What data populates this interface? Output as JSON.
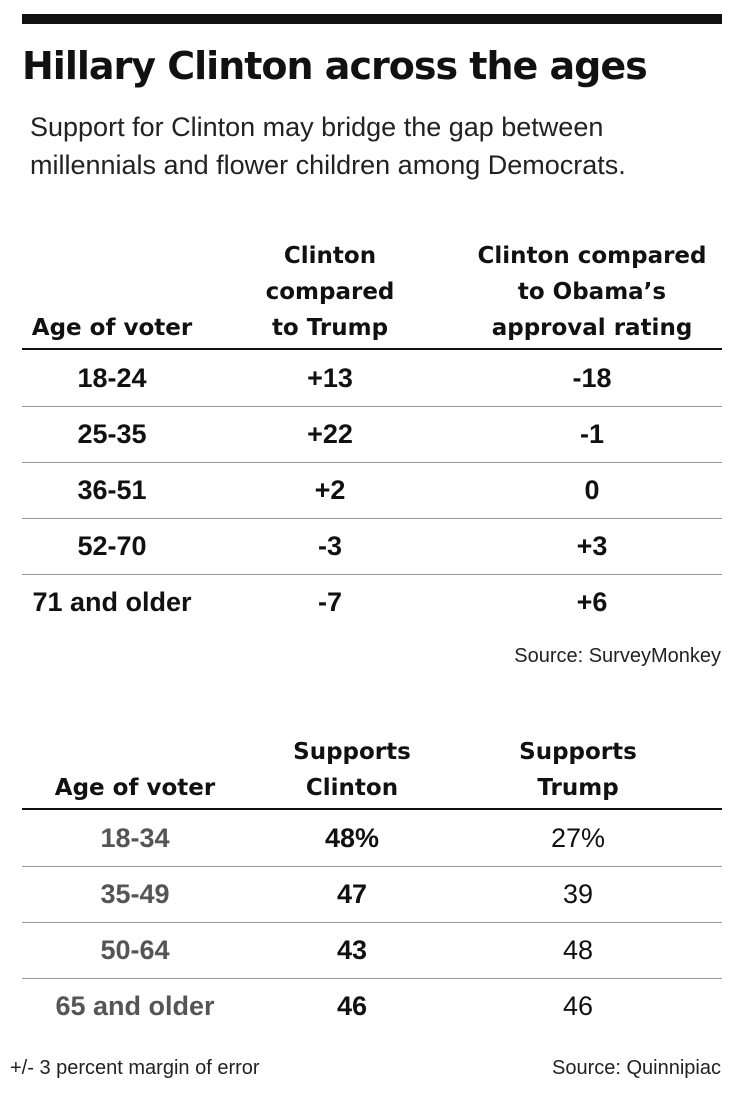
{
  "title": "Hillary Clinton across the ages",
  "subtitle": "Support for Clinton may bridge the gap between millennials and flower children among Democrats.",
  "chart_data": [
    {
      "type": "table",
      "columns": [
        "Age of voter",
        "Clinton compared to Trump",
        "Clinton compared to Obama’s approval rating"
      ],
      "rows": [
        [
          "18-24",
          "+13",
          "-18"
        ],
        [
          "25-35",
          "+22",
          "-1"
        ],
        [
          "36-51",
          "+2",
          "0"
        ],
        [
          "52-70",
          "-3",
          "+3"
        ],
        [
          "71 and older",
          "-7",
          "+6"
        ]
      ],
      "source": "Source: SurveyMonkey"
    },
    {
      "type": "table",
      "columns": [
        "Age of voter",
        "Supports Clinton",
        "Supports Trump"
      ],
      "rows": [
        [
          "18-34",
          "48%",
          "27%"
        ],
        [
          "35-49",
          "47",
          "39"
        ],
        [
          "50-64",
          "43",
          "48"
        ],
        [
          "65 and older",
          "46",
          "46"
        ]
      ],
      "note": "+/- 3 percent margin of error",
      "source": "Source:  Quinnipiac"
    }
  ]
}
